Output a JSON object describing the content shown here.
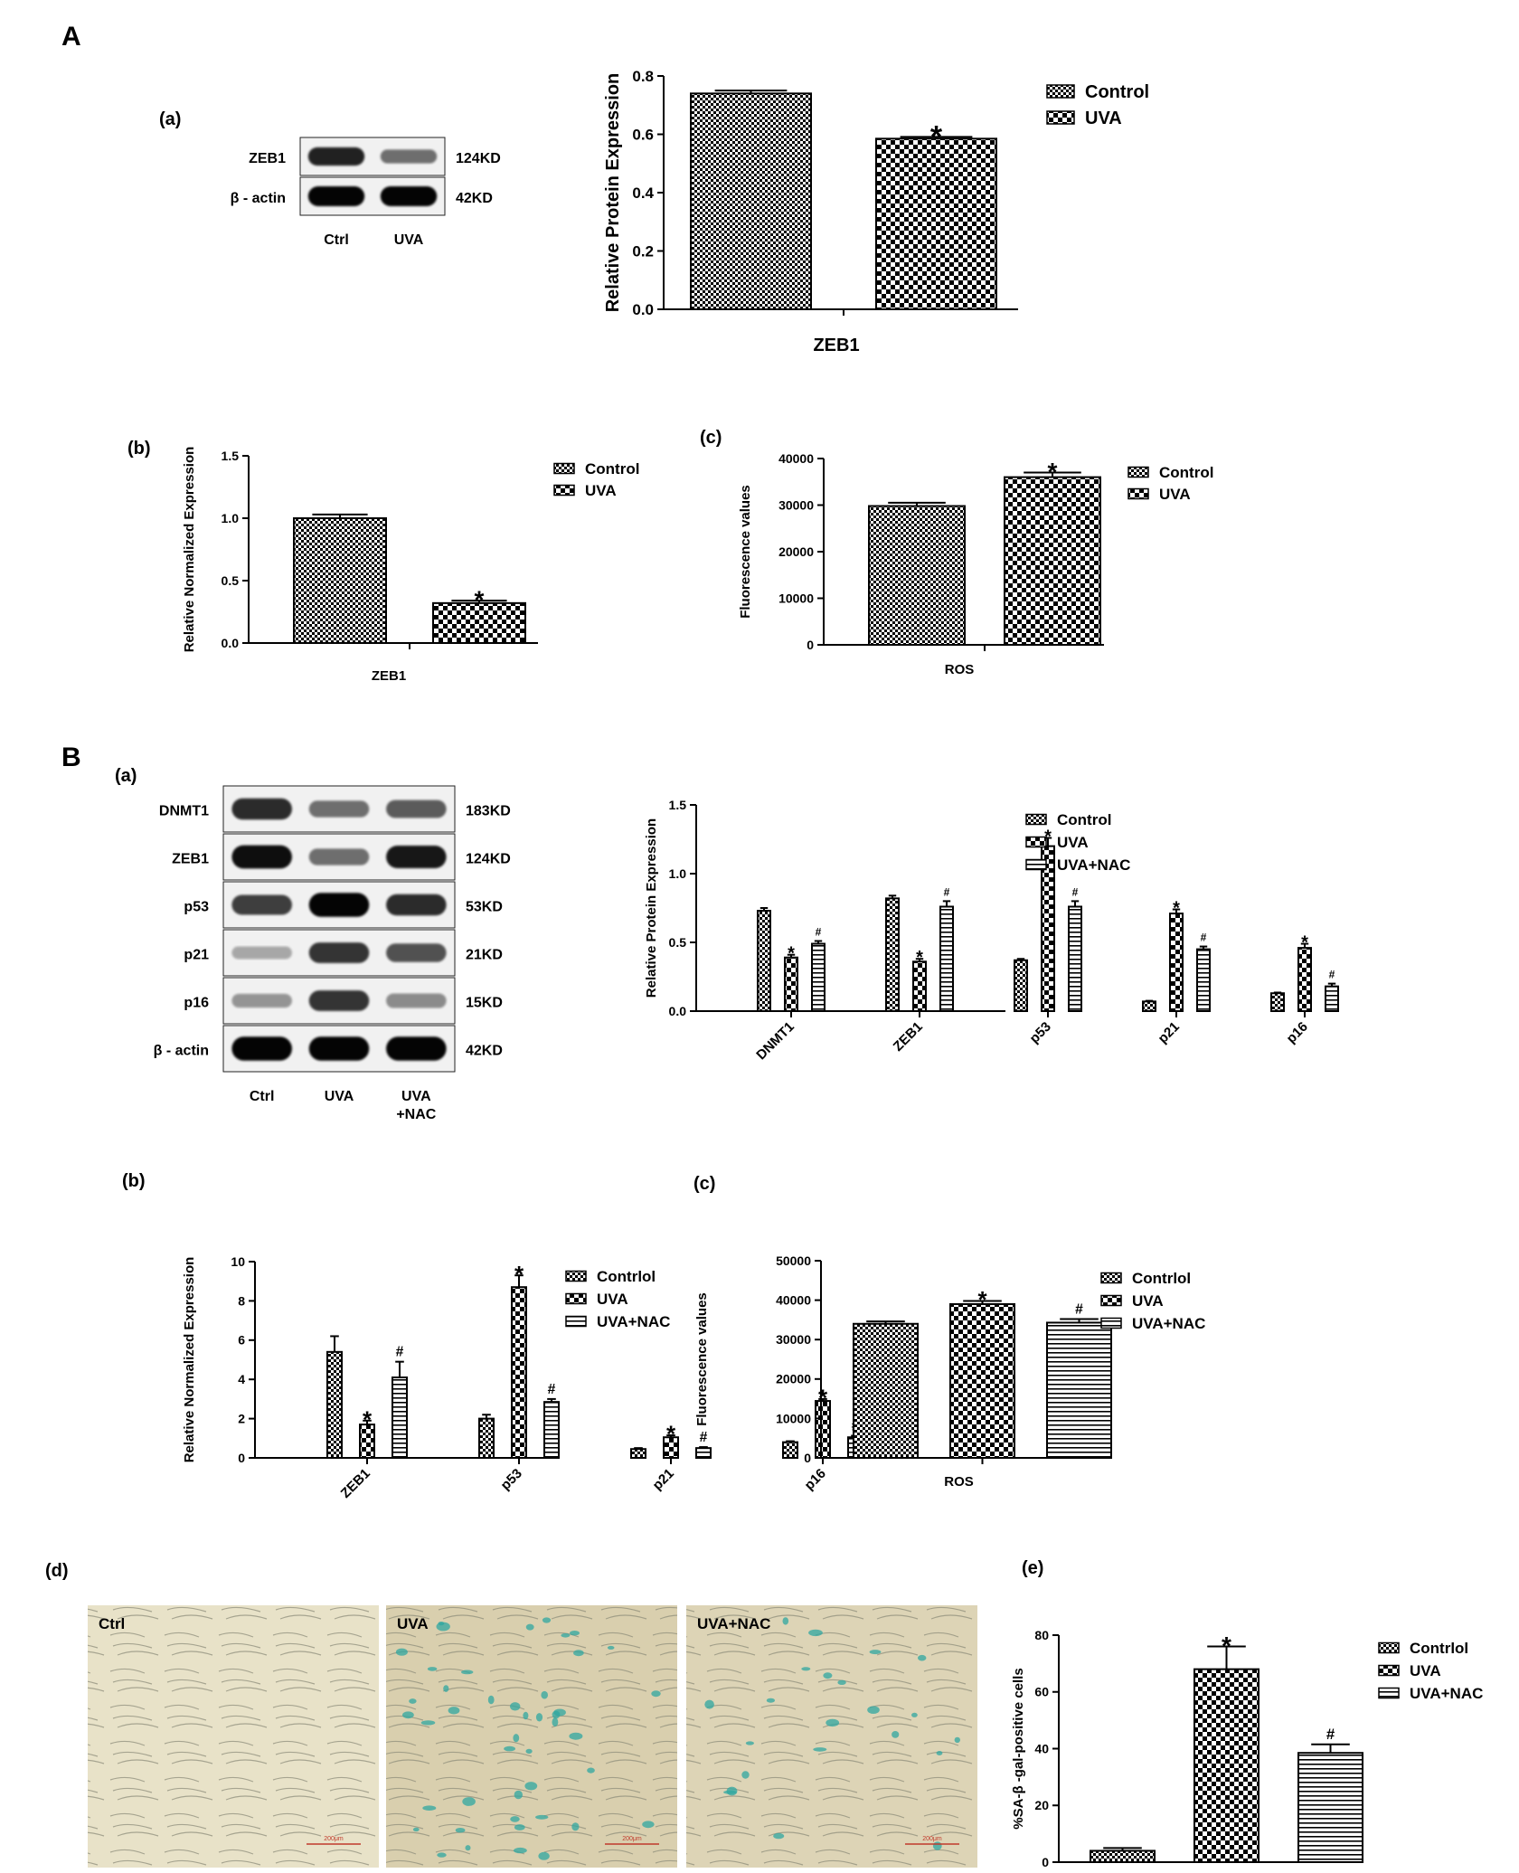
{
  "panels": {
    "A": "A",
    "B": "B",
    "Aa": "(a)",
    "Ab": "(b)",
    "Ac": "(c)",
    "Ba": "(a)",
    "Bb": "(b)",
    "Bc": "(c)",
    "Bd": "(d)",
    "Be": "(e)"
  },
  "blots": {
    "A": {
      "rows": [
        {
          "label": "ZEB1",
          "size": "124KD"
        },
        {
          "label": "β - actin",
          "size": "42KD"
        }
      ],
      "lanes": [
        "Ctrl",
        "UVA"
      ],
      "bands": [
        [
          0.85,
          0.45
        ],
        [
          1.0,
          1.0
        ]
      ]
    },
    "B": {
      "rows": [
        {
          "label": "DNMT1",
          "size": "183KD"
        },
        {
          "label": "ZEB1",
          "size": "124KD"
        },
        {
          "label": "p53",
          "size": "53KD"
        },
        {
          "label": "p21",
          "size": "21KD"
        },
        {
          "label": "p16",
          "size": "15KD"
        },
        {
          "label": "β - actin",
          "size": "42KD"
        }
      ],
      "lanes": [
        "Ctrl",
        "UVA",
        "UVA\n+NAC"
      ],
      "bands": [
        [
          0.8,
          0.45,
          0.55
        ],
        [
          0.95,
          0.45,
          0.9
        ],
        [
          0.7,
          1.0,
          0.8
        ],
        [
          0.15,
          0.75,
          0.6
        ],
        [
          0.25,
          0.75,
          0.3
        ],
        [
          1.0,
          1.0,
          1.0
        ]
      ]
    }
  },
  "micrographs": {
    "labels": [
      "Ctrl",
      "UVA",
      "UVA+NAC"
    ],
    "scalebar": "200μm",
    "stain_color": "#2fa7a0"
  },
  "chart_data": [
    {
      "id": "A_main",
      "type": "bar",
      "ylabel": "Relative Protein Expression",
      "xlabel": "ZEB1",
      "ylim": [
        0,
        0.8
      ],
      "yticks": [
        "0.0",
        "0.2",
        "0.4",
        "0.6",
        "0.8"
      ],
      "categories": [
        ""
      ],
      "series": [
        {
          "name": "Control",
          "values": [
            0.74
          ],
          "err": [
            0.01
          ],
          "pattern": "fine",
          "mark": [
            ""
          ]
        },
        {
          "name": "UVA",
          "values": [
            0.585
          ],
          "err": [
            0.006
          ],
          "pattern": "coarse",
          "mark": [
            "*"
          ]
        }
      ]
    },
    {
      "id": "A_b",
      "type": "bar",
      "ylabel": "Relative Normalized Expression",
      "xlabel": "ZEB1",
      "ylim": [
        0,
        1.5
      ],
      "yticks": [
        "0.0",
        "0.5",
        "1.0",
        "1.5"
      ],
      "categories": [
        ""
      ],
      "series": [
        {
          "name": "Control",
          "values": [
            1.0
          ],
          "err": [
            0.03
          ],
          "pattern": "fine",
          "mark": [
            ""
          ]
        },
        {
          "name": "UVA",
          "values": [
            0.32
          ],
          "err": [
            0.02
          ],
          "pattern": "coarse",
          "mark": [
            "*"
          ]
        }
      ]
    },
    {
      "id": "A_c",
      "type": "bar",
      "ylabel": "Fluorescence values",
      "xlabel": "ROS",
      "ylim": [
        0,
        40000
      ],
      "yticks": [
        "0",
        "10000",
        "20000",
        "30000",
        "40000"
      ],
      "categories": [
        ""
      ],
      "series": [
        {
          "name": "Control",
          "values": [
            29800
          ],
          "err": [
            700
          ],
          "pattern": "fine",
          "mark": [
            ""
          ]
        },
        {
          "name": "UVA",
          "values": [
            36000
          ],
          "err": [
            1000
          ],
          "pattern": "coarse",
          "mark": [
            "*"
          ]
        }
      ]
    },
    {
      "id": "B_a",
      "type": "bar",
      "ylabel": "Relative Protein Expression",
      "xlabel": "",
      "ylim": [
        0,
        1.5
      ],
      "yticks": [
        "0.0",
        "0.5",
        "1.0",
        "1.5"
      ],
      "categories": [
        "DNMT1",
        "ZEB1",
        "p53",
        "p21",
        "p16"
      ],
      "series": [
        {
          "name": "Control",
          "values": [
            0.73,
            0.82,
            0.37,
            0.07,
            0.13
          ],
          "err": [
            0.02,
            0.02,
            0.01,
            0.005,
            0.005
          ],
          "pattern": "fine",
          "mark": [
            "",
            "",
            "",
            "",
            ""
          ]
        },
        {
          "name": "UVA",
          "values": [
            0.39,
            0.36,
            1.2,
            0.71,
            0.46
          ],
          "err": [
            0.02,
            0.02,
            0.06,
            0.03,
            0.03
          ],
          "pattern": "coarse",
          "mark": [
            "*",
            "*",
            "*",
            "*",
            "*"
          ]
        },
        {
          "name": "UVA+NAC",
          "values": [
            0.49,
            0.76,
            0.76,
            0.45,
            0.18
          ],
          "err": [
            0.02,
            0.04,
            0.04,
            0.02,
            0.02
          ],
          "pattern": "hlines",
          "mark": [
            "#",
            "#",
            "#",
            "#",
            "#"
          ]
        }
      ]
    },
    {
      "id": "B_b",
      "type": "bar",
      "ylabel": "Relative Normalized Expression",
      "xlabel": "",
      "ylim": [
        0,
        10
      ],
      "yticks": [
        "0",
        "2",
        "4",
        "6",
        "8",
        "10"
      ],
      "categories": [
        "ZEB1",
        "p53",
        "p21",
        "p16"
      ],
      "series": [
        {
          "name": "Contrlol",
          "values": [
            5.4,
            2.0,
            0.45,
            0.8
          ],
          "err": [
            0.8,
            0.2,
            0.05,
            0.05
          ],
          "pattern": "fine",
          "mark": [
            "",
            "",
            "",
            ""
          ]
        },
        {
          "name": "UVA",
          "values": [
            1.7,
            8.7,
            1.05,
            2.9
          ],
          "err": [
            0.2,
            0.6,
            0.1,
            0.1
          ],
          "pattern": "coarse",
          "mark": [
            "*",
            "*",
            "*",
            "*"
          ]
        },
        {
          "name": "UVA+NAC",
          "values": [
            4.1,
            2.85,
            0.5,
            1.05
          ],
          "err": [
            0.8,
            0.15,
            0.05,
            0.08
          ],
          "pattern": "hlines",
          "mark": [
            "#",
            "#",
            "#",
            "#"
          ]
        }
      ]
    },
    {
      "id": "B_c",
      "type": "bar",
      "ylabel": "Fluorescence values",
      "xlabel": "ROS",
      "ylim": [
        0,
        50000
      ],
      "yticks": [
        "0",
        "10000",
        "20000",
        "30000",
        "40000",
        "50000"
      ],
      "categories": [
        ""
      ],
      "series": [
        {
          "name": "Contrlol",
          "values": [
            34000
          ],
          "err": [
            600
          ],
          "pattern": "fine",
          "mark": [
            ""
          ]
        },
        {
          "name": "UVA",
          "values": [
            39000
          ],
          "err": [
            800
          ],
          "pattern": "coarse",
          "mark": [
            "*"
          ]
        },
        {
          "name": "UVA+NAC",
          "values": [
            34300
          ],
          "err": [
            900
          ],
          "pattern": "hlines",
          "mark": [
            "#"
          ]
        }
      ]
    },
    {
      "id": "B_e",
      "type": "bar",
      "ylabel": "%SA-β -gal-positive cells",
      "xlabel": "",
      "ylim": [
        0,
        80
      ],
      "yticks": [
        "0",
        "20",
        "40",
        "60",
        "80"
      ],
      "categories": [
        ""
      ],
      "series": [
        {
          "name": "Contrlol",
          "values": [
            4
          ],
          "err": [
            1
          ],
          "pattern": "fine",
          "mark": [
            ""
          ]
        },
        {
          "name": "UVA",
          "values": [
            68
          ],
          "err": [
            8
          ],
          "pattern": "coarse",
          "mark": [
            "*"
          ]
        },
        {
          "name": "UVA+NAC",
          "values": [
            38.5
          ],
          "err": [
            3
          ],
          "pattern": "hlines",
          "mark": [
            "#"
          ]
        }
      ]
    }
  ]
}
